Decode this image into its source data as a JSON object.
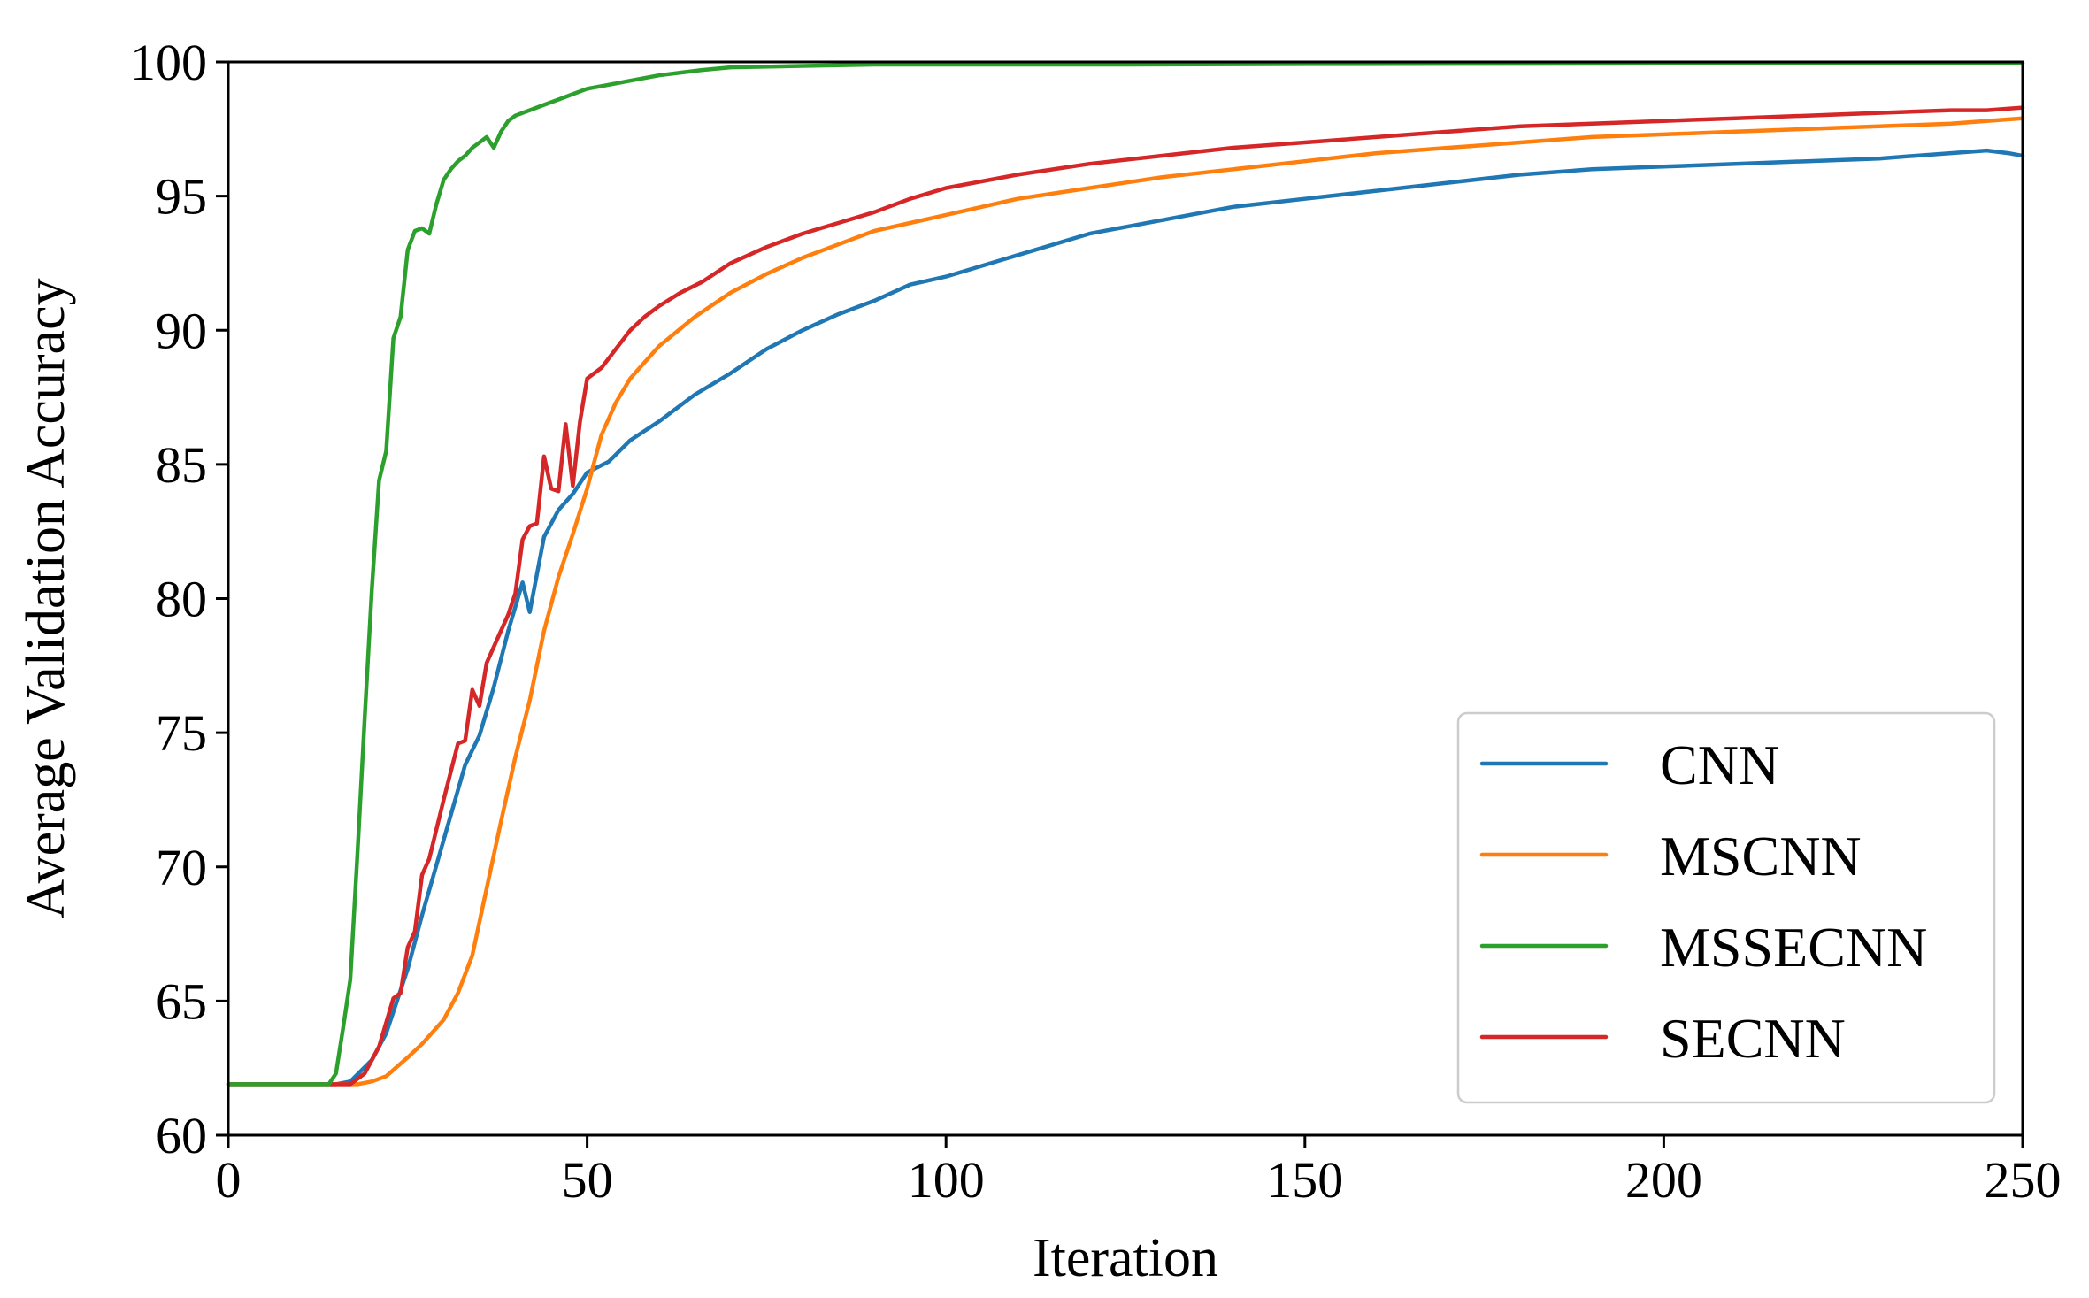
{
  "chart_data": {
    "type": "line",
    "title": "",
    "xlabel": "Iteration",
    "ylabel": "Average Validation Accuracy",
    "xlim": [
      0,
      250
    ],
    "ylim": [
      60,
      100
    ],
    "xticks": [
      0,
      50,
      100,
      150,
      200,
      250
    ],
    "yticks": [
      60,
      65,
      70,
      75,
      80,
      85,
      90,
      95,
      100
    ],
    "xtick_labels": [
      "0",
      "50",
      "100",
      "150",
      "200",
      "250"
    ],
    "ytick_labels": [
      "60",
      "65",
      "70",
      "75",
      "80",
      "85",
      "90",
      "95",
      "100"
    ],
    "grid": false,
    "legend_position": "bottom-right",
    "series": [
      {
        "name": "CNN",
        "color": "#1f77b4",
        "x": [
          0,
          5,
          10,
          15,
          17,
          20,
          22,
          25,
          27,
          30,
          33,
          35,
          37,
          39,
          41,
          42,
          44,
          46,
          48,
          50,
          53,
          56,
          60,
          65,
          70,
          75,
          80,
          85,
          90,
          95,
          100,
          110,
          120,
          130,
          140,
          150,
          160,
          170,
          180,
          190,
          200,
          210,
          220,
          230,
          235,
          240,
          245,
          248,
          250
        ],
        "y": [
          61.9,
          61.9,
          61.9,
          61.9,
          62.0,
          62.8,
          63.8,
          66.2,
          68.2,
          71.0,
          73.8,
          74.9,
          76.7,
          78.8,
          80.6,
          79.5,
          82.3,
          83.3,
          83.9,
          84.7,
          85.1,
          85.9,
          86.6,
          87.6,
          88.4,
          89.3,
          90.0,
          90.6,
          91.1,
          91.7,
          92.0,
          92.8,
          93.6,
          94.1,
          94.6,
          94.9,
          95.2,
          95.5,
          95.8,
          96.0,
          96.1,
          96.2,
          96.3,
          96.4,
          96.5,
          96.6,
          96.7,
          96.6,
          96.5
        ]
      },
      {
        "name": "MSCNN",
        "color": "#ff7f0e",
        "x": [
          0,
          5,
          10,
          15,
          18,
          20,
          22,
          25,
          27,
          30,
          32,
          34,
          36,
          38,
          40,
          42,
          44,
          46,
          48,
          50,
          52,
          54,
          56,
          60,
          65,
          70,
          75,
          80,
          85,
          90,
          95,
          100,
          110,
          120,
          130,
          140,
          150,
          160,
          170,
          180,
          190,
          200,
          210,
          220,
          230,
          240,
          245,
          250
        ],
        "y": [
          61.9,
          61.9,
          61.9,
          61.9,
          61.9,
          62.0,
          62.2,
          62.9,
          63.4,
          64.3,
          65.3,
          66.7,
          69.2,
          71.7,
          74.1,
          76.2,
          78.8,
          80.8,
          82.4,
          84.1,
          86.1,
          87.3,
          88.2,
          89.4,
          90.5,
          91.4,
          92.1,
          92.7,
          93.2,
          93.7,
          94.0,
          94.3,
          94.9,
          95.3,
          95.7,
          96.0,
          96.3,
          96.6,
          96.8,
          97.0,
          97.2,
          97.3,
          97.4,
          97.5,
          97.6,
          97.7,
          97.8,
          97.9
        ]
      },
      {
        "name": "MSSECNN",
        "color": "#2ca02c",
        "x": [
          0,
          5,
          10,
          14,
          15,
          16,
          17,
          18,
          19,
          20,
          21,
          22,
          23,
          24,
          25,
          26,
          27,
          28,
          29,
          30,
          31,
          32,
          33,
          34,
          35,
          36,
          37,
          38,
          39,
          40,
          42,
          44,
          46,
          48,
          50,
          52,
          54,
          56,
          58,
          60,
          63,
          66,
          70,
          80,
          90,
          100,
          125,
          150,
          175,
          200,
          225,
          250
        ],
        "y": [
          61.9,
          61.9,
          61.9,
          61.9,
          62.3,
          64.0,
          65.8,
          70.5,
          75.5,
          80.3,
          84.4,
          85.5,
          89.7,
          90.5,
          93.0,
          93.7,
          93.8,
          93.6,
          94.7,
          95.6,
          96.0,
          96.3,
          96.5,
          96.8,
          97.0,
          97.2,
          96.8,
          97.4,
          97.8,
          98.0,
          98.2,
          98.4,
          98.6,
          98.8,
          99.0,
          99.1,
          99.2,
          99.3,
          99.4,
          99.5,
          99.6,
          99.7,
          99.8,
          99.85,
          99.9,
          99.9,
          99.9,
          99.92,
          99.93,
          99.94,
          99.95,
          99.95
        ]
      },
      {
        "name": "SECNN",
        "color": "#d62728",
        "x": [
          0,
          5,
          10,
          15,
          17,
          19,
          21,
          23,
          24,
          25,
          26,
          27,
          28,
          30,
          32,
          33,
          34,
          35,
          36,
          37,
          39,
          40,
          41,
          42,
          43,
          44,
          45,
          46,
          47,
          48,
          49,
          50,
          52,
          54,
          56,
          58,
          60,
          63,
          66,
          70,
          75,
          80,
          85,
          90,
          95,
          100,
          110,
          120,
          130,
          140,
          150,
          160,
          170,
          180,
          190,
          200,
          210,
          220,
          230,
          240,
          245,
          250
        ],
        "y": [
          61.9,
          61.9,
          61.9,
          61.9,
          61.9,
          62.3,
          63.3,
          65.1,
          65.3,
          67.0,
          67.6,
          69.7,
          70.3,
          72.5,
          74.6,
          74.7,
          76.6,
          76.0,
          77.6,
          78.2,
          79.4,
          80.2,
          82.2,
          82.7,
          82.8,
          85.3,
          84.1,
          84.0,
          86.5,
          84.2,
          86.6,
          88.2,
          88.6,
          89.3,
          90.0,
          90.5,
          90.9,
          91.4,
          91.8,
          92.5,
          93.1,
          93.6,
          94.0,
          94.4,
          94.9,
          95.3,
          95.8,
          96.2,
          96.5,
          96.8,
          97.0,
          97.2,
          97.4,
          97.6,
          97.7,
          97.8,
          97.9,
          98.0,
          98.1,
          98.2,
          98.2,
          98.3
        ]
      }
    ]
  }
}
